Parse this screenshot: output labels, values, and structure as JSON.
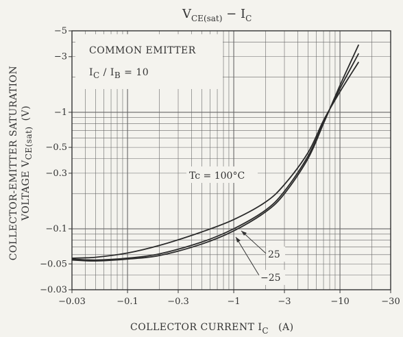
{
  "chart_data": {
    "type": "line",
    "title": "V",
    "title_sub": "CE(sat)",
    "title_rest": " − I",
    "title_sub2": "C",
    "xlabel_main": "COLLECTOR CURRENT   I",
    "xlabel_sub": "C",
    "xlabel_unit": "(A)",
    "ylabel_line1": "COLLECTOR-EMITTER SATURATION",
    "ylabel_line2a": "VOLTAGE   V",
    "ylabel_line2sub": "CE(sat)",
    "ylabel_line2b": "(V)",
    "x_scale": "log",
    "y_scale": "log",
    "x_ticks": [
      {
        "value": 0.03,
        "label": "−0.03"
      },
      {
        "value": 0.1,
        "label": "−0.1"
      },
      {
        "value": 0.3,
        "label": "−0.3"
      },
      {
        "value": 1,
        "label": "−1"
      },
      {
        "value": 3,
        "label": "−3"
      },
      {
        "value": 10,
        "label": "−10"
      },
      {
        "value": 30,
        "label": "−30"
      }
    ],
    "y_ticks": [
      {
        "value": 0.03,
        "label": "−0.03"
      },
      {
        "value": 0.05,
        "label": "−0.05"
      },
      {
        "value": 0.1,
        "label": "−0.1"
      },
      {
        "value": 0.3,
        "label": "−0.3"
      },
      {
        "value": 0.5,
        "label": "−0.5"
      },
      {
        "value": 1,
        "label": "−1"
      },
      {
        "value": 3,
        "label": "−3"
      },
      {
        "value": 5,
        "label": "−5"
      }
    ],
    "xlim": [
      0.03,
      30
    ],
    "ylim": [
      0.03,
      5
    ],
    "grid": true,
    "legend_box": {
      "line1": "COMMON EMITTER",
      "line2_a": "I",
      "line2_sub_a": "C",
      "line2_mid": " / I",
      "line2_sub_b": "B",
      "line2_b": " = 10"
    },
    "series": [
      {
        "name": "Tc = 100°C",
        "x": [
          0.03,
          0.05,
          0.1,
          0.2,
          0.5,
          1,
          2,
          3,
          5,
          7,
          10,
          15
        ],
        "y": [
          0.056,
          0.057,
          0.062,
          0.072,
          0.094,
          0.12,
          0.17,
          0.24,
          0.45,
          0.85,
          1.5,
          2.7
        ]
      },
      {
        "name": "25",
        "x": [
          0.03,
          0.05,
          0.1,
          0.2,
          0.5,
          1,
          2,
          3,
          5,
          7,
          10,
          15
        ],
        "y": [
          0.055,
          0.054,
          0.056,
          0.061,
          0.077,
          0.1,
          0.145,
          0.21,
          0.42,
          0.82,
          1.6,
          3.2
        ]
      },
      {
        "name": "−25",
        "x": [
          0.03,
          0.05,
          0.1,
          0.2,
          0.5,
          1,
          2,
          3,
          5,
          7,
          10,
          15
        ],
        "y": [
          0.054,
          0.053,
          0.055,
          0.059,
          0.074,
          0.096,
          0.14,
          0.2,
          0.4,
          0.8,
          1.7,
          3.8
        ]
      }
    ],
    "annotations": {
      "tc100": "Tc = 100°C",
      "t25": "25",
      "tm25": "−25"
    }
  }
}
